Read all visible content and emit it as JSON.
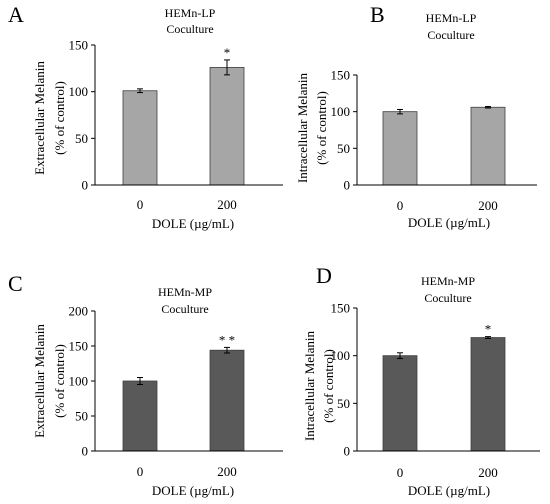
{
  "chart_data": [
    {
      "type": "bar",
      "panel_letter": "A",
      "title_lines": [
        "HEMn-LP",
        "Coculture"
      ],
      "xlabel": "DOLE (µg/mL)",
      "ylabel_lines": [
        "Extracellular Melanin",
        "(% of control)"
      ],
      "categories": [
        "0",
        "200"
      ],
      "values": [
        101,
        126
      ],
      "errors": [
        2,
        8
      ],
      "annotations": [
        "",
        "*"
      ],
      "ylim": [
        0,
        150
      ],
      "yticks": [
        "0",
        "50",
        "100",
        "150"
      ],
      "bar_color": "#a6a6a6",
      "grid": false
    },
    {
      "type": "bar",
      "panel_letter": "B",
      "title_lines": [
        "HEMn-LP",
        "Coculture"
      ],
      "xlabel": "DOLE (µg/mL)",
      "ylabel_lines": [
        "Intracellular Melanin",
        "(% of control)"
      ],
      "categories": [
        "0",
        "200"
      ],
      "values": [
        100,
        106
      ],
      "errors": [
        3,
        1
      ],
      "annotations": [
        "",
        ""
      ],
      "ylim": [
        0,
        150
      ],
      "yticks": [
        "0",
        "50",
        "100",
        "150"
      ],
      "bar_color": "#a6a6a6",
      "grid": false
    },
    {
      "type": "bar",
      "panel_letter": "C",
      "title_lines": [
        "HEMn-MP",
        "Coculture"
      ],
      "xlabel": "DOLE (µg/mL)",
      "ylabel_lines": [
        "Extracellular Melanin",
        "(% of control)"
      ],
      "categories": [
        "0",
        "200"
      ],
      "values": [
        100,
        144
      ],
      "errors": [
        5,
        4
      ],
      "annotations": [
        "",
        "* *"
      ],
      "ylim": [
        0,
        200
      ],
      "yticks": [
        "0",
        "50",
        "100",
        "150",
        "200"
      ],
      "bar_color": "#595959",
      "grid": false
    },
    {
      "type": "bar",
      "panel_letter": "D",
      "title_lines": [
        "HEMn-MP",
        "Coculture"
      ],
      "xlabel": "DOLE (µg/mL)",
      "ylabel_lines": [
        "Intracellular Melanin",
        "(% of control)"
      ],
      "categories": [
        "0",
        "200"
      ],
      "values": [
        100,
        119
      ],
      "errors": [
        3,
        1
      ],
      "annotations": [
        "",
        "*"
      ],
      "ylim": [
        0,
        150
      ],
      "yticks": [
        "0",
        "50",
        "100",
        "150"
      ],
      "bar_color": "#595959",
      "grid": false
    }
  ]
}
